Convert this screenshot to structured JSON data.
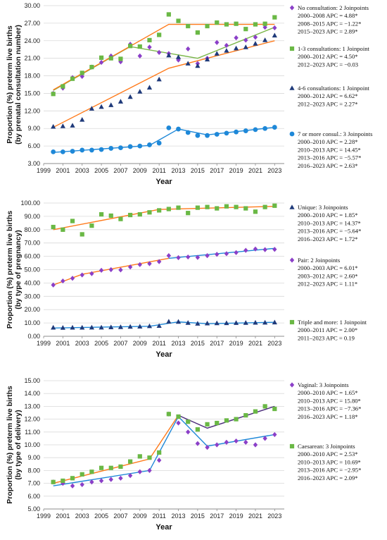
{
  "chart_data": [
    {
      "type": "scatter",
      "xlabel": "Year",
      "ylabel": [
        "Proportion (%) preterm live births",
        "(by prenatal consultation number)"
      ],
      "ylim": [
        3.0,
        30.0
      ],
      "yticks": [
        "3.00",
        "6.00",
        "9.00",
        "12.00",
        "15.00",
        "18.00",
        "21.00",
        "24.00",
        "27.00",
        "30.00"
      ],
      "xlim": [
        1999,
        2024
      ],
      "xticks": [
        "1999",
        "2001",
        "2003",
        "2005",
        "2007",
        "2009",
        "2011",
        "2013",
        "2015",
        "2017",
        "2019",
        "2021",
        "2023"
      ],
      "series": [
        {
          "name": "No consultation: 2 Joinpoints",
          "marker": "diamond",
          "color": "#8b3fc8",
          "x": [
            2000,
            2001,
            2002,
            2003,
            2004,
            2005,
            2006,
            2007,
            2008,
            2009,
            2010,
            2011,
            2012,
            2013,
            2014,
            2015,
            2016,
            2017,
            2018,
            2019,
            2020,
            2021,
            2022,
            2023
          ],
          "values": [
            15.0,
            15.9,
            17.7,
            17.9,
            19.5,
            20.3,
            21.4,
            20.4,
            23.4,
            21.4,
            22.9,
            22.0,
            21.8,
            20.7,
            22.6,
            20.1,
            21.0,
            23.7,
            23.2,
            24.5,
            24.1,
            24.6,
            26.3,
            26.2
          ],
          "fit": {
            "color": "#7ab648",
            "x": [
              2000,
              2008,
              2015,
              2023
            ],
            "y": [
              15.5,
              23.0,
              21.0,
              26.3
            ]
          },
          "legend": [
            "2000–2008 APC = 4.88*",
            "2008–2015 APC = −1.22*",
            "2015–2023 APC = 2.89*"
          ]
        },
        {
          "name": "1-3 consultations: 1 Joinpoint",
          "marker": "square",
          "color": "#6ab845",
          "x": [
            2000,
            2001,
            2002,
            2003,
            2004,
            2005,
            2006,
            2007,
            2008,
            2009,
            2010,
            2011,
            2012,
            2013,
            2014,
            2015,
            2016,
            2017,
            2018,
            2019,
            2020,
            2021,
            2022,
            2023
          ],
          "values": [
            14.9,
            16.2,
            17.5,
            18.5,
            19.5,
            21.1,
            21.0,
            20.9,
            23.1,
            23.0,
            24.1,
            25.0,
            28.5,
            27.4,
            26.5,
            25.4,
            26.5,
            27.1,
            26.8,
            26.9,
            26.0,
            26.8,
            26.9,
            28.0
          ],
          "fit": {
            "color": "#ff7a1a",
            "x": [
              2000,
              2012,
              2023
            ],
            "y": [
              15.6,
              26.8,
              26.8
            ]
          },
          "legend": [
            "2000–2012 APC = 4.50*",
            "2012–2023 APC = −0.03"
          ]
        },
        {
          "name": "4-6 consultations: 1 Joinpoint",
          "marker": "triangle",
          "color": "#1f3a7a",
          "x": [
            2000,
            2001,
            2002,
            2003,
            2004,
            2005,
            2006,
            2007,
            2008,
            2009,
            2010,
            2011,
            2012,
            2013,
            2014,
            2015,
            2016,
            2017,
            2018,
            2019,
            2020,
            2021,
            2022,
            2023
          ],
          "values": [
            9.3,
            9.4,
            9.5,
            10.5,
            12.4,
            12.7,
            13.0,
            13.6,
            14.4,
            15.3,
            16.0,
            17.4,
            21.5,
            21.2,
            20.1,
            19.7,
            20.8,
            21.8,
            22.3,
            22.7,
            22.9,
            23.5,
            24.1,
            24.9
          ],
          "fit": {
            "color": "#ff7a1a",
            "x": [
              2000,
              2012,
              2023
            ],
            "y": [
              9.2,
              19.3,
              24.0
            ]
          },
          "legend": [
            "2000–2012 APC = 6.62*",
            "2012–2023 APC = 2.27*"
          ]
        },
        {
          "name": "7 or more consul.: 3 Joinpoints",
          "marker": "circle",
          "color": "#1e88d8",
          "x": [
            2000,
            2001,
            2002,
            2003,
            2004,
            2005,
            2006,
            2007,
            2008,
            2009,
            2010,
            2011,
            2012,
            2013,
            2014,
            2015,
            2016,
            2017,
            2018,
            2019,
            2020,
            2021,
            2022,
            2023
          ],
          "values": [
            5.0,
            5.0,
            5.1,
            5.3,
            5.3,
            5.4,
            5.6,
            5.7,
            5.9,
            6.0,
            6.2,
            6.5,
            9.1,
            8.9,
            8.3,
            7.8,
            7.8,
            8.0,
            8.2,
            8.4,
            8.6,
            8.8,
            9.0,
            9.2
          ],
          "fit": {
            "color": "#1e88d8",
            "x": [
              2000,
              2010,
              2013,
              2016,
              2023
            ],
            "y": [
              4.9,
              6.1,
              8.9,
              7.9,
              9.2
            ]
          },
          "legend": [
            "2000–2010 APC = 2.28*",
            "2010–2013 APC = 14.45*",
            "2013–2016 APC = −5.57*",
            "2016–2023 APC = 2.63*"
          ]
        }
      ]
    },
    {
      "type": "scatter",
      "xlabel": "Year",
      "ylabel": [
        "Proportion (%) preterm live births",
        "(by type of pregnancy)"
      ],
      "ylim": [
        0.0,
        100.0
      ],
      "yticks": [
        "0.00",
        "10.00",
        "20.00",
        "30.00",
        "40.00",
        "50.00",
        "60.00",
        "70.00",
        "80.00",
        "90.00",
        "100.00"
      ],
      "xlim": [
        1999,
        2024
      ],
      "xticks": [
        "1999",
        "2001",
        "2003",
        "2005",
        "2007",
        "2009",
        "2011",
        "2013",
        "2015",
        "2017",
        "2019",
        "2021",
        "2023"
      ],
      "series": [
        {
          "name": "Unique: 3 Joinpoints",
          "marker": "triangle",
          "color": "#1f3a7a",
          "x": [
            2000,
            2001,
            2002,
            2003,
            2004,
            2005,
            2006,
            2007,
            2008,
            2009,
            2010,
            2011,
            2012,
            2013,
            2014,
            2015,
            2016,
            2017,
            2018,
            2019,
            2020,
            2021,
            2022,
            2023
          ],
          "values": [
            6.5,
            6.4,
            6.5,
            6.5,
            6.6,
            6.6,
            6.8,
            6.9,
            7.2,
            7.3,
            7.6,
            7.8,
            11.0,
            10.9,
            10.1,
            9.5,
            9.7,
            9.8,
            9.9,
            10.0,
            10.1,
            10.2,
            10.3,
            10.4
          ],
          "fit": {
            "color": "#1e88d8",
            "x": [
              2000,
              2010,
              2013,
              2016,
              2023
            ],
            "y": [
              6.2,
              7.5,
              10.8,
              9.4,
              10.5
            ]
          },
          "legend": [
            "2000–2010 APC = 1.85*",
            "2010–2013 APC = 14.37*",
            "2013–2016 APC = −5.64*",
            "2016–2023 APC = 1.72*"
          ]
        },
        {
          "name": "Pair: 2 Joinpoints",
          "marker": "diamond",
          "color": "#8b3fc8",
          "x": [
            2000,
            2001,
            2002,
            2003,
            2004,
            2005,
            2006,
            2007,
            2008,
            2009,
            2010,
            2011,
            2012,
            2013,
            2014,
            2015,
            2016,
            2017,
            2018,
            2019,
            2020,
            2021,
            2022,
            2023
          ],
          "values": [
            38.5,
            41.5,
            43.5,
            46.0,
            47.0,
            49.5,
            50.0,
            49.8,
            52.0,
            53.8,
            54.5,
            56.0,
            60.5,
            59.0,
            59.5,
            59.2,
            60.5,
            61.5,
            62.0,
            62.8,
            64.5,
            65.5,
            65.0,
            65.2
          ],
          "fit": {
            "color": "#ff7a1a",
            "x": [
              2000,
              2003,
              2012
            ],
            "y": [
              38.5,
              46.5,
              58.5
            ],
            "fit2": {
              "color": "#1e88d8",
              "x": [
                2012,
                2023
              ],
              "y": [
                58.5,
                66.0
              ]
            }
          },
          "legend": [
            "2000–2003 APC = 6.01*",
            "2003–2012 APC = 2.60*",
            "2012–2023 APC = 1.11*"
          ]
        },
        {
          "name": "Triple and more: 1 Joinpoint",
          "marker": "square",
          "color": "#6ab845",
          "x": [
            2000,
            2001,
            2002,
            2003,
            2004,
            2005,
            2006,
            2007,
            2008,
            2009,
            2010,
            2011,
            2012,
            2013,
            2014,
            2015,
            2016,
            2017,
            2018,
            2019,
            2020,
            2021,
            2022,
            2023
          ],
          "values": [
            82.0,
            80.0,
            86.5,
            76.5,
            83.0,
            91.5,
            90.5,
            88.0,
            91.0,
            91.5,
            93.0,
            94.5,
            95.5,
            96.5,
            92.5,
            96.5,
            97.0,
            96.0,
            97.5,
            97.0,
            96.0,
            93.5,
            97.0,
            98.0
          ],
          "fit": {
            "color": "#ff7a1a",
            "x": [
              2000,
              2011,
              2023
            ],
            "y": [
              80.0,
              95.2,
              97.5
            ]
          },
          "legend": [
            "2000–2011 APC = 2.00*",
            "2011–2023 APC = 0.19"
          ]
        }
      ]
    },
    {
      "type": "scatter",
      "xlabel": "Year",
      "ylabel": [
        "Proportion (%) preterm live births",
        "(by type of delivery)"
      ],
      "ylim": [
        5.0,
        15.0
      ],
      "yticks": [
        "5.00",
        "6.00",
        "7.00",
        "8.00",
        "9.00",
        "10.00",
        "11.00",
        "12.00",
        "13.00",
        "14.00",
        "15.00"
      ],
      "xlim": [
        1999,
        2024
      ],
      "xticks": [
        "1999",
        "2001",
        "2003",
        "2005",
        "2007",
        "2009",
        "2011",
        "2013",
        "2015",
        "2017",
        "2019",
        "2021",
        "2023"
      ],
      "series": [
        {
          "name": "Vaginal: 3 Joinpoints",
          "marker": "diamond",
          "color": "#8b3fc8",
          "x": [
            2000,
            2001,
            2002,
            2003,
            2004,
            2005,
            2006,
            2007,
            2008,
            2009,
            2010,
            2011,
            2012,
            2013,
            2014,
            2015,
            2016,
            2017,
            2018,
            2019,
            2020,
            2021,
            2022,
            2023
          ],
          "values": [
            7.1,
            7.0,
            6.8,
            6.9,
            7.1,
            7.2,
            7.3,
            7.4,
            7.6,
            7.9,
            8.0,
            8.8,
            12.4,
            11.7,
            11.0,
            10.1,
            9.8,
            10.0,
            10.2,
            10.3,
            10.2,
            10.0,
            10.5,
            10.8
          ],
          "fit": {
            "color": "#1e88d8",
            "x": [
              2000,
              2010,
              2013,
              2016,
              2023
            ],
            "y": [
              6.8,
              8.0,
              12.2,
              9.9,
              10.8
            ]
          },
          "legend": [
            "2000–2010 APC = 1.65*",
            "2010–2013 APC = 15.80*",
            "2013–2016 APC = −7.36*",
            "2016–2023 APC = 1.18*"
          ]
        },
        {
          "name": "Caesarean: 3 Joinpoints",
          "marker": "square",
          "color": "#6ab845",
          "x": [
            2000,
            2001,
            2002,
            2003,
            2004,
            2005,
            2006,
            2007,
            2008,
            2009,
            2010,
            2011,
            2012,
            2013,
            2014,
            2015,
            2016,
            2017,
            2018,
            2019,
            2020,
            2021,
            2022,
            2023
          ],
          "values": [
            7.1,
            7.2,
            7.4,
            7.7,
            7.9,
            8.2,
            8.2,
            8.3,
            8.7,
            9.1,
            9.0,
            9.4,
            12.4,
            12.2,
            11.8,
            11.2,
            11.6,
            11.7,
            11.9,
            12.0,
            12.3,
            12.6,
            13.0,
            12.8
          ],
          "fit": {
            "color": "#ff7a1a",
            "x": [
              2000,
              2010,
              2013
            ],
            "y": [
              7.0,
              8.9,
              12.3
            ],
            "fit2": {
              "color": "#4a2a7a",
              "x": [
                2013,
                2016,
                2023
              ],
              "y": [
                12.3,
                11.3,
                13.0
              ]
            }
          },
          "legend": [
            "2000–2010 APC = 2.53*",
            "2010–2013 APC = 10.69*",
            "2013–2016 APC = −2.95*",
            "2016–2023 APC = 2.09*"
          ]
        }
      ]
    }
  ]
}
